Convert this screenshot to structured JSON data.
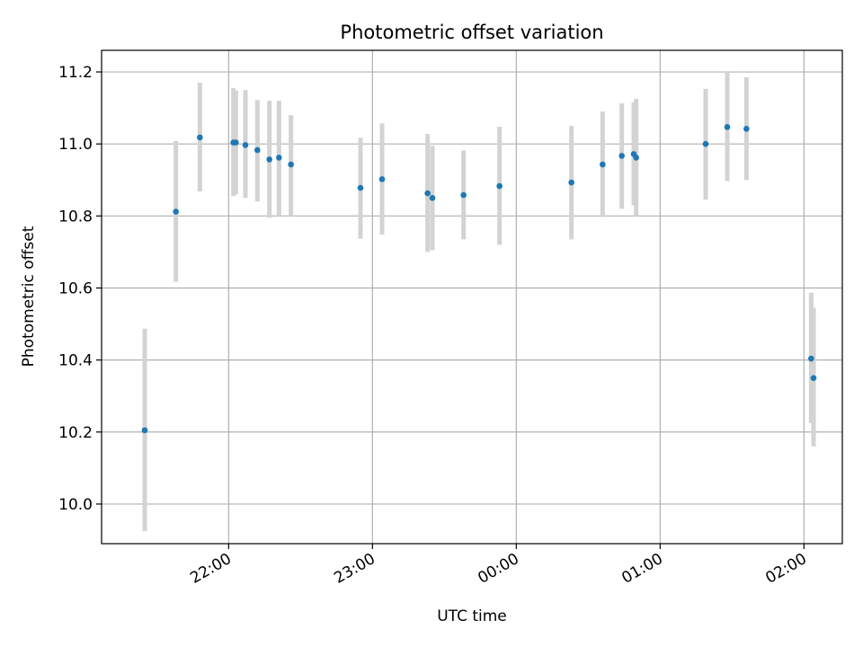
{
  "chart_data": {
    "type": "scatter",
    "title": "Photometric offset variation",
    "xlabel": "UTC time",
    "ylabel": "Photometric offset",
    "x_axis_kind": "time",
    "xlim": [
      "21:07",
      "02:16"
    ],
    "ylim": [
      9.89,
      11.26
    ],
    "x_ticks": [
      "22:00",
      "23:00",
      "00:00",
      "01:00",
      "02:00"
    ],
    "y_ticks": [
      "10.0",
      "10.2",
      "10.4",
      "10.6",
      "10.8",
      "11.0",
      "11.2"
    ],
    "grid": true,
    "series": [
      {
        "marker_color": "#1f77b4",
        "errorbar_color": "#d3d3d3",
        "points": [
          {
            "x": "21:25",
            "y": 10.205,
            "ylo": 9.925,
            "yhi": 10.487
          },
          {
            "x": "21:38",
            "y": 10.812,
            "ylo": 10.617,
            "yhi": 11.008
          },
          {
            "x": "21:48",
            "y": 11.018,
            "ylo": 10.868,
            "yhi": 11.17
          },
          {
            "x": "22:02",
            "y": 11.004,
            "ylo": 10.855,
            "yhi": 11.155
          },
          {
            "x": "22:03",
            "y": 11.004,
            "ylo": 10.86,
            "yhi": 11.148
          },
          {
            "x": "22:07",
            "y": 10.997,
            "ylo": 10.85,
            "yhi": 11.15
          },
          {
            "x": "22:12",
            "y": 10.983,
            "ylo": 10.84,
            "yhi": 11.122
          },
          {
            "x": "22:17",
            "y": 10.957,
            "ylo": 10.795,
            "yhi": 11.12
          },
          {
            "x": "22:21",
            "y": 10.962,
            "ylo": 10.8,
            "yhi": 11.12
          },
          {
            "x": "22:26",
            "y": 10.943,
            "ylo": 10.8,
            "yhi": 11.08
          },
          {
            "x": "22:55",
            "y": 10.878,
            "ylo": 10.737,
            "yhi": 11.017
          },
          {
            "x": "23:04",
            "y": 10.902,
            "ylo": 10.748,
            "yhi": 11.057
          },
          {
            "x": "23:23",
            "y": 10.863,
            "ylo": 10.7,
            "yhi": 11.028
          },
          {
            "x": "23:25",
            "y": 10.85,
            "ylo": 10.705,
            "yhi": 10.995
          },
          {
            "x": "23:38",
            "y": 10.858,
            "ylo": 10.735,
            "yhi": 10.982
          },
          {
            "x": "23:53",
            "y": 10.883,
            "ylo": 10.72,
            "yhi": 11.048
          },
          {
            "x": "00:23",
            "y": 10.893,
            "ylo": 10.735,
            "yhi": 11.05
          },
          {
            "x": "00:36",
            "y": 10.943,
            "ylo": 10.797,
            "yhi": 11.09
          },
          {
            "x": "00:44",
            "y": 10.967,
            "ylo": 10.82,
            "yhi": 11.113
          },
          {
            "x": "00:49",
            "y": 10.972,
            "ylo": 10.83,
            "yhi": 11.115
          },
          {
            "x": "00:50",
            "y": 10.962,
            "ylo": 10.8,
            "yhi": 11.125
          },
          {
            "x": "01:19",
            "y": 11.0,
            "ylo": 10.845,
            "yhi": 11.153
          },
          {
            "x": "01:28",
            "y": 11.047,
            "ylo": 10.897,
            "yhi": 11.2
          },
          {
            "x": "01:36",
            "y": 11.042,
            "ylo": 10.9,
            "yhi": 11.185
          },
          {
            "x": "02:03",
            "y": 10.404,
            "ylo": 10.225,
            "yhi": 10.587
          },
          {
            "x": "02:04",
            "y": 10.35,
            "ylo": 10.16,
            "yhi": 10.545
          }
        ]
      }
    ]
  }
}
